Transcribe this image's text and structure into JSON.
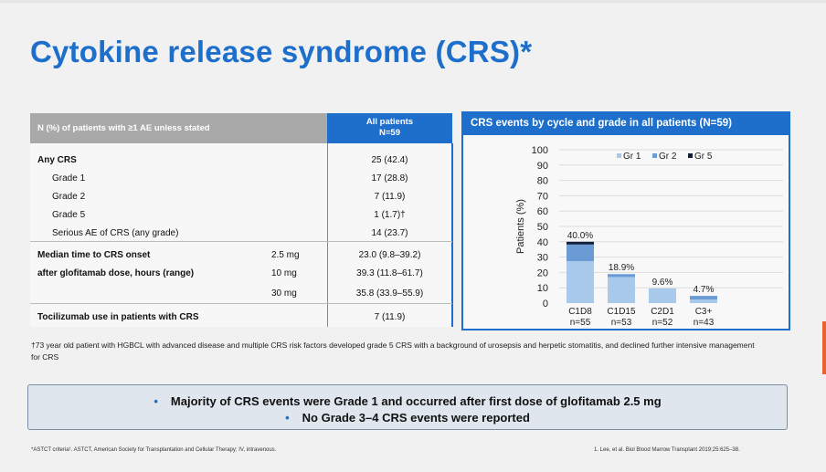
{
  "slide": {
    "title": "Cytokine release syndrome (CRS)*"
  },
  "table": {
    "header_left": "N (%) of patients with ≥1 AE unless stated",
    "header_right_line1": "All patients",
    "header_right_line2": "N=59",
    "rows": [
      {
        "label": "Any CRS",
        "dose": "",
        "value": "25 (42.4)"
      },
      {
        "label": "Grade 1",
        "dose": "",
        "value": "17 (28.8)"
      },
      {
        "label": "Grade 2",
        "dose": "",
        "value": "7 (11.9)"
      },
      {
        "label": "Grade 5",
        "dose": "",
        "value": "1 (1.7)†"
      },
      {
        "label": "Serious AE of CRS (any grade)",
        "dose": "",
        "value": "14 (23.7)"
      },
      {
        "label": "Median time to CRS onset",
        "dose": "2.5 mg",
        "value": "23.0 (9.8–39.2)"
      },
      {
        "label": "after glofitamab dose, hours (range)",
        "dose": "10 mg",
        "value": "39.3 (11.8–61.7)"
      },
      {
        "label": "",
        "dose": "30 mg",
        "value": "35.8 (33.9–55.9)"
      },
      {
        "label": "Tocilizumab use in patients with CRS",
        "dose": "",
        "value": "7 (11.9)"
      }
    ]
  },
  "chart_data": {
    "type": "bar",
    "stacked": true,
    "title": "CRS events by cycle and grade in all patients (N=59)",
    "ylabel": "Patients (%)",
    "ylim": [
      0,
      100
    ],
    "yticks": [
      0,
      10,
      20,
      30,
      40,
      50,
      60,
      70,
      80,
      90,
      100
    ],
    "grid": true,
    "legend_position": "top-right",
    "categories": [
      "C1D8",
      "C1D15",
      "C2D1",
      "C3+"
    ],
    "category_sublabels": [
      "n=55",
      "n=53",
      "n=52",
      "n=43"
    ],
    "totals_labels": [
      "40.0%",
      "18.9%",
      "9.6%",
      "4.7%"
    ],
    "series": [
      {
        "name": "Gr 1",
        "color": "#a9c9ea",
        "values": [
          27.3,
          17.0,
          9.6,
          2.3
        ]
      },
      {
        "name": "Gr 2",
        "color": "#6a9bd4",
        "values": [
          10.9,
          1.9,
          0,
          2.4
        ]
      },
      {
        "name": "Gr 5",
        "color": "#0f1f3d",
        "values": [
          1.8,
          0,
          0,
          0
        ]
      }
    ]
  },
  "footnote": "†73 year old patient with HGBCL with advanced disease and multiple CRS risk factors developed grade 5 CRS with a background of urosepsis and herpetic stomatitis, and declined further intensive management for CRS",
  "key_points": [
    "Majority of CRS events were Grade 1 and occurred after first dose of glofitamab 2.5 mg",
    "No Grade 3–4 CRS events were reported"
  ],
  "footer": {
    "left": "*ASTCT criteria¹. ASTCT, American Society for Transplantation and Cellular Therapy; IV, intravenous.",
    "right": "1. Lee, et al. Biol Blood Marrow Transplant 2019;25:625–38."
  }
}
